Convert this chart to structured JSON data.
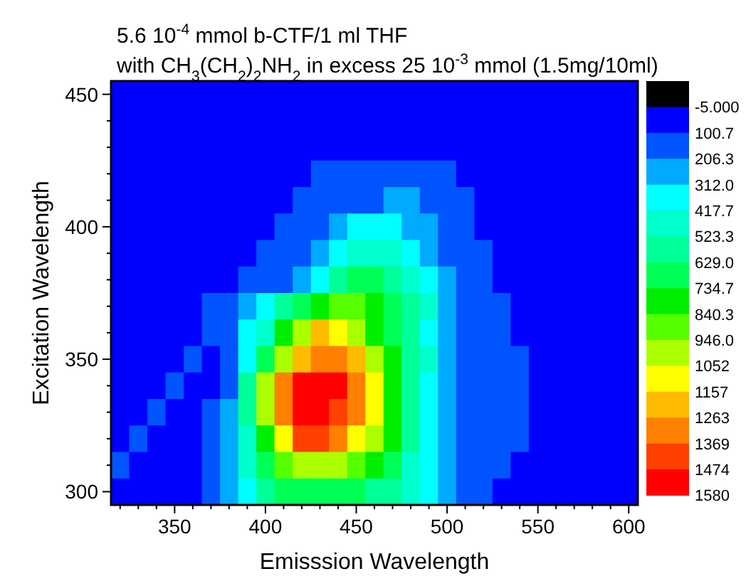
{
  "chart_data": {
    "type": "heatmap",
    "title": "5.6 10$^{-4}$ mmol b-CTF/1 ml THF",
    "subtitle": "with CH$_{3}$(CH$_{2}$)$_{2}$NH$_{2}$ in excess 25 10$^{-3}$ mmol (1.5mg/10ml)",
    "xlabel": "Emisssion Wavelength",
    "ylabel": "Excitation Wavelength",
    "categories": [
      null,
      null,
      null,
      "350",
      null,
      null,
      null,
      null,
      "400",
      null,
      null,
      null,
      null,
      "450",
      null,
      null,
      null,
      null,
      "500",
      null,
      null,
      null,
      null,
      "550",
      null,
      null,
      null,
      null,
      "600"
    ],
    "y_categories": [
      "450",
      null,
      null,
      null,
      null,
      "400",
      null,
      null,
      null,
      null,
      "350",
      null,
      null,
      null,
      null,
      "300"
    ],
    "cells": [
      [
        48,
        48,
        48,
        48,
        48,
        48,
        48,
        48,
        48,
        48,
        48,
        48,
        48,
        48,
        48,
        48,
        48,
        48,
        48,
        48,
        48,
        48,
        48,
        48,
        48,
        48,
        48,
        48,
        48
      ],
      [
        48,
        48,
        48,
        48,
        48,
        48,
        48,
        48,
        48,
        48,
        48,
        48,
        48,
        48,
        48,
        48,
        48,
        48,
        48,
        48,
        48,
        48,
        48,
        48,
        48,
        48,
        48,
        48,
        48
      ],
      [
        48,
        48,
        48,
        48,
        48,
        48,
        48,
        48,
        48,
        48,
        48,
        48,
        48,
        48,
        48,
        48,
        48,
        48,
        48,
        48,
        48,
        48,
        48,
        48,
        48,
        48,
        48,
        48,
        48
      ],
      [
        48,
        48,
        48,
        48,
        48,
        48,
        48,
        48,
        48,
        48,
        48,
        153,
        153,
        153,
        153,
        153,
        153,
        153,
        153,
        48,
        48,
        48,
        48,
        48,
        48,
        48,
        48,
        48,
        48
      ],
      [
        48,
        48,
        48,
        48,
        48,
        48,
        48,
        48,
        48,
        48,
        153,
        153,
        153,
        153,
        153,
        259,
        259,
        153,
        153,
        153,
        48,
        48,
        48,
        48,
        48,
        48,
        48,
        48,
        48
      ],
      [
        48,
        48,
        48,
        48,
        48,
        48,
        48,
        48,
        48,
        153,
        153,
        153,
        259,
        365,
        365,
        365,
        259,
        259,
        153,
        153,
        48,
        48,
        48,
        48,
        48,
        48,
        48,
        48,
        48
      ],
      [
        48,
        48,
        48,
        48,
        48,
        48,
        48,
        48,
        153,
        153,
        153,
        259,
        365,
        470,
        470,
        470,
        365,
        259,
        153,
        153,
        153,
        48,
        48,
        48,
        48,
        48,
        48,
        48,
        48
      ],
      [
        48,
        48,
        48,
        48,
        48,
        48,
        48,
        153,
        153,
        153,
        259,
        365,
        576,
        682,
        682,
        576,
        470,
        365,
        259,
        153,
        153,
        48,
        48,
        48,
        48,
        48,
        48,
        48,
        48
      ],
      [
        48,
        48,
        48,
        48,
        48,
        153,
        153,
        259,
        365,
        576,
        682,
        787,
        893,
        893,
        787,
        682,
        576,
        470,
        259,
        153,
        153,
        153,
        48,
        48,
        48,
        48,
        48,
        48,
        48
      ],
      [
        48,
        48,
        48,
        48,
        48,
        153,
        153,
        365,
        470,
        787,
        999,
        1210,
        1104,
        999,
        787,
        682,
        576,
        365,
        259,
        153,
        153,
        153,
        48,
        48,
        48,
        48,
        48,
        48,
        48
      ],
      [
        48,
        48,
        48,
        48,
        153,
        48,
        153,
        365,
        682,
        999,
        1210,
        1316,
        1316,
        1210,
        999,
        787,
        576,
        470,
        259,
        153,
        153,
        153,
        153,
        48,
        48,
        48,
        48,
        48,
        48
      ],
      [
        48,
        48,
        48,
        153,
        48,
        48,
        153,
        576,
        999,
        1316,
        1527,
        1527,
        1527,
        1316,
        1104,
        787,
        576,
        365,
        259,
        153,
        153,
        153,
        153,
        48,
        48,
        48,
        48,
        48,
        48
      ],
      [
        48,
        48,
        153,
        48,
        48,
        153,
        259,
        576,
        999,
        1316,
        1527,
        1527,
        1421,
        1316,
        1104,
        787,
        576,
        365,
        259,
        153,
        153,
        153,
        153,
        48,
        48,
        48,
        48,
        48,
        48
      ],
      [
        48,
        153,
        48,
        48,
        48,
        153,
        259,
        470,
        787,
        1104,
        1421,
        1421,
        1316,
        1104,
        999,
        787,
        576,
        365,
        259,
        153,
        153,
        153,
        153,
        48,
        48,
        48,
        48,
        48,
        48
      ],
      [
        153,
        48,
        48,
        48,
        48,
        153,
        259,
        470,
        682,
        893,
        999,
        999,
        999,
        893,
        787,
        682,
        470,
        365,
        259,
        153,
        153,
        153,
        48,
        48,
        48,
        48,
        48,
        48,
        48
      ],
      [
        48,
        48,
        48,
        48,
        48,
        153,
        259,
        365,
        576,
        682,
        682,
        682,
        682,
        682,
        576,
        576,
        470,
        365,
        259,
        153,
        153,
        48,
        48,
        48,
        48,
        48,
        48,
        48,
        48
      ]
    ],
    "cticks": [
      {
        "value": -5,
        "label": "-5.000"
      },
      100.7,
      206.3,
      {
        "value": 312,
        "label": "312.0"
      },
      417.7,
      523.3,
      {
        "value": 629,
        "label": "629.0"
      },
      734.7,
      840.3,
      {
        "value": 946,
        "label": "946.0"
      },
      1052,
      1157,
      1263,
      1369,
      1474,
      1580
    ],
    "colors": [
      "#000000",
      "#0000ff",
      "#0055ff",
      "#00aaff",
      "#00ffff",
      "#00ffcc",
      "#00ff99",
      "#00ff55",
      "#00ee00",
      "#55ff00",
      "#aaff00",
      "#ffff00",
      "#ffbb00",
      "#ff8000",
      "#ff4000",
      "#ff0000"
    ]
  }
}
